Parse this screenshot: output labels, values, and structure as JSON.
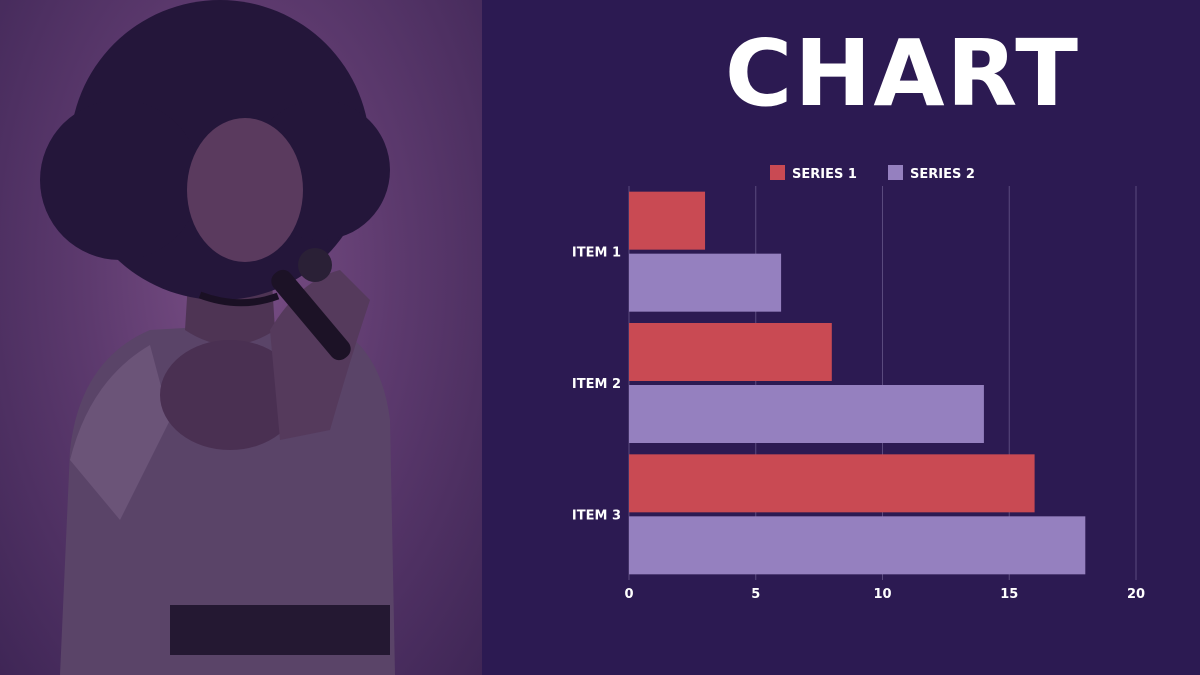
{
  "slide": {
    "title": "CHART"
  },
  "photo": {
    "description_icon": "singer-with-microphone-photo"
  },
  "colors": {
    "background": "#2c1a52",
    "series1": "#c94a53",
    "series2": "#9580bf",
    "grid": "#5a4a7e"
  },
  "chart_data": {
    "type": "bar",
    "orientation": "horizontal",
    "categories": [
      "ITEM 1",
      "ITEM 2",
      "ITEM 3"
    ],
    "series": [
      {
        "name": "SERIES 1",
        "values": [
          3,
          8,
          16
        ]
      },
      {
        "name": "SERIES 2",
        "values": [
          6,
          14,
          18
        ]
      }
    ],
    "xlim": [
      0,
      20
    ],
    "xticks": [
      0,
      5,
      10,
      15,
      20
    ],
    "grid": true,
    "legend": "top"
  }
}
